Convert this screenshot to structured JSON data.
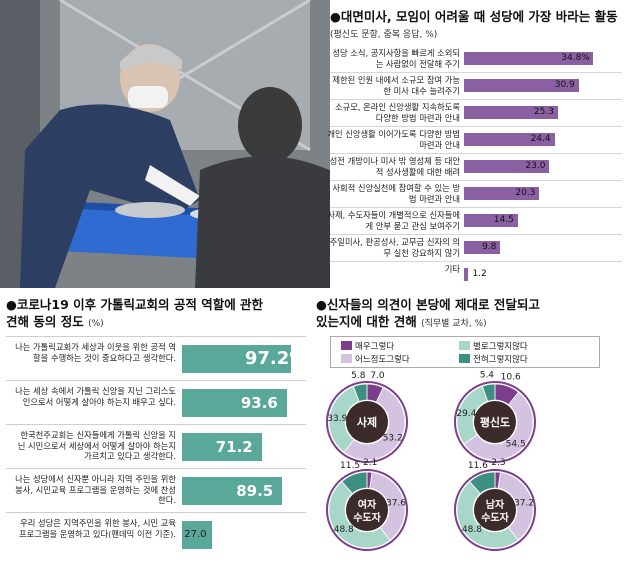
{
  "colors": {
    "purple": "#8b60a3",
    "teal": "#5aa899",
    "very_much": "#7b3d8c",
    "not_much": "#a8d7c9",
    "somewhat": "#d3c2e0",
    "not_at_all": "#3f8e82"
  },
  "chart_data": [
    {
      "type": "bar",
      "title": "대면미사, 모임이 어려울 때 성당에 가장 바라는 활동",
      "note": "(평신도 문항, 중복 응답, %)",
      "categories": [
        "성당 소식, 공지사항을 빠르게 소외되는 사람없이 전달해 주기",
        "제한된 인원 내에서 소규모 참여 가능한 미사 대수 늘려주기",
        "소규모, 온라인 신앙생활 지속하도록 다양한 방법 마련과 안내",
        "개인 신앙생활 이어가도록 다양한 방법 마련과 안내",
        "성전 개방이나 미사 밖 영성체 등 대안적 성사생활에 대한 배려",
        "사회적 신앙실천에 참여할 수 있는 방법 마련과 안내",
        "사제, 수도자들이 개별적으로 신자들에게 안부 묻고 관심 보여주기",
        "주일미사, 판공성사, 교무금 신자의 의무 실천 강요하지 않기",
        "기타"
      ],
      "values": [
        34.8,
        30.9,
        25.3,
        24.4,
        23.0,
        20.3,
        14.5,
        9.8,
        1.2
      ],
      "value_labels": [
        "34.8%",
        "30.9",
        "25.3",
        "24.4",
        "23.0",
        "20.3",
        "14.5",
        "9.8",
        "1.2"
      ],
      "xlim": [
        0,
        35
      ]
    },
    {
      "type": "bar",
      "title_line1": "●코로나19 이후 가톨릭교회의 공적 역할에 관한",
      "title_line2": "견해 동의 정도",
      "unit": "(%)",
      "categories": [
        "나는 가톨릭교회가 세상과 이웃을 위한 공적 역할을 수행하는 것이 중요하다고 생각한다.",
        "나는 세상 속에서 가톨릭 신앙을 지닌 그리스도인으로서 어떻게 살아야 하는지 배우고 싶다.",
        "한국천주교회는 신자들에게 가톨릭 신앙을 지닌 시민으로서 세상에서 어떻게 살아야 하는지 가르치고 있다고 생각한다.",
        "나는 성당에서 신자뿐 아니라 지역 주민을 위한 봉사, 시민교육 프로그램을 운영하는 것에 찬성한다.",
        "우리 성당은 지역주민을 위한 봉사, 시민 교육 프로그램을 운영하고 있다(팬데믹 이전 기준)."
      ],
      "values": [
        97.2,
        93.6,
        71.2,
        89.5,
        27.0
      ],
      "value_labels": [
        "97.2%",
        "93.6",
        "71.2",
        "89.5",
        "27.0"
      ],
      "xlim": [
        0,
        100
      ]
    },
    {
      "type": "pie",
      "title_line1": "●신자들의 의견이 본당에 제대로 전달되고",
      "title_line2": "있는지에 대한 견해",
      "unit": "(직무별 교차, %)",
      "legend": [
        "매우그렇다",
        "별로그렇지않다",
        "어느정도그렇다",
        "전혀그렇지않다"
      ],
      "slice_order": [
        "매우그렇다",
        "어느정도그렇다",
        "별로그렇지않다",
        "전혀그렇지않다"
      ],
      "groups": [
        {
          "name": "사제",
          "values": [
            7.0,
            53.2,
            33.9,
            5.8
          ],
          "labels": [
            "7.0",
            "53.2",
            "33.9",
            "5.8"
          ]
        },
        {
          "name": "평신도",
          "values": [
            10.6,
            54.5,
            29.4,
            5.4
          ],
          "labels": [
            "10.6",
            "54.5",
            "29.4",
            "5.4"
          ]
        },
        {
          "name": "여자 수도자",
          "name_line1": "여자",
          "name_line2": "수도자",
          "values": [
            2.1,
            37.6,
            48.8,
            11.5
          ],
          "labels": [
            "2.1",
            "37.6",
            "48.8",
            "11.5"
          ]
        },
        {
          "name": "남자 수도자",
          "name_line1": "남자",
          "name_line2": "수도자",
          "values": [
            2.3,
            37.2,
            48.8,
            11.6
          ],
          "labels": [
            "2.3",
            "37.2",
            "48.8",
            "11.6"
          ]
        }
      ]
    }
  ]
}
